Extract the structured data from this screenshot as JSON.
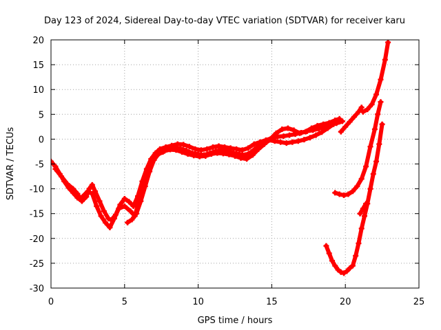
{
  "chart_data": {
    "type": "scatter",
    "title": "Day 123 of 2024, Sidereal Day-to-day VTEC variation (SDTVAR) for receiver karu",
    "xlabel": "GPS time / hours",
    "ylabel": "SDTVAR / TECUs",
    "xlim": [
      0,
      25
    ],
    "ylim": [
      -30,
      20
    ],
    "xticks": [
      "0",
      "5",
      "10",
      "15",
      "20",
      "25"
    ],
    "yticks": [
      "20",
      "15",
      "10",
      "5",
      "0",
      "-5",
      "-10",
      "-15",
      "-20",
      "-25",
      "-30"
    ],
    "grid": true,
    "legend": "none",
    "color": "#ff0000",
    "series": [
      {
        "points": [
          [
            0.0,
            -4.5
          ],
          [
            0.3,
            -5.5
          ],
          [
            0.6,
            -7.0
          ],
          [
            0.9,
            -8.5
          ],
          [
            1.2,
            -9.8
          ],
          [
            1.5,
            -10.8
          ],
          [
            1.8,
            -11.8
          ],
          [
            2.1,
            -12.5
          ],
          [
            2.4,
            -11.6
          ],
          [
            2.6,
            -10.0
          ],
          [
            2.8,
            -9.2
          ],
          [
            3.0,
            -10.5
          ],
          [
            3.3,
            -12.5
          ],
          [
            3.6,
            -14.5
          ],
          [
            3.9,
            -16.0
          ],
          [
            4.1,
            -16.3
          ],
          [
            4.4,
            -15.2
          ],
          [
            4.7,
            -13.2
          ],
          [
            5.0,
            -12.0
          ],
          [
            5.3,
            -12.6
          ],
          [
            5.6,
            -13.5
          ],
          [
            5.9,
            -11.5
          ],
          [
            6.2,
            -8.5
          ],
          [
            6.5,
            -6.0
          ],
          [
            6.8,
            -4.0
          ],
          [
            7.1,
            -2.8
          ],
          [
            7.4,
            -2.0
          ],
          [
            7.8,
            -1.6
          ],
          [
            8.2,
            -1.3
          ],
          [
            8.6,
            -1.0
          ],
          [
            9.0,
            -1.1
          ],
          [
            9.4,
            -1.5
          ],
          [
            9.8,
            -2.0
          ],
          [
            10.2,
            -2.2
          ],
          [
            10.6,
            -2.0
          ],
          [
            11.0,
            -1.6
          ],
          [
            11.4,
            -1.4
          ],
          [
            11.8,
            -1.6
          ],
          [
            12.2,
            -1.8
          ],
          [
            12.6,
            -2.0
          ],
          [
            13.0,
            -2.2
          ],
          [
            13.4,
            -1.8
          ],
          [
            13.8,
            -1.0
          ],
          [
            14.2,
            -0.6
          ],
          [
            14.6,
            -0.2
          ],
          [
            15.0,
            0.2
          ],
          [
            15.4,
            0.5
          ],
          [
            15.8,
            0.6
          ],
          [
            16.2,
            0.8
          ],
          [
            16.6,
            1.0
          ],
          [
            17.0,
            1.3
          ],
          [
            17.4,
            1.6
          ],
          [
            17.8,
            1.8
          ],
          [
            18.2,
            2.1
          ],
          [
            18.6,
            2.5
          ],
          [
            19.0,
            2.9
          ],
          [
            19.4,
            3.2
          ],
          [
            19.8,
            3.6
          ]
        ]
      },
      {
        "points": [
          [
            0.3,
            -6.0
          ],
          [
            0.7,
            -7.5
          ],
          [
            1.1,
            -9.0
          ],
          [
            1.5,
            -10.0
          ],
          [
            1.8,
            -11.0
          ],
          [
            2.0,
            -12.0
          ],
          [
            2.5,
            -10.5
          ],
          [
            2.8,
            -11.0
          ],
          [
            3.1,
            -13.5
          ],
          [
            3.4,
            -15.5
          ],
          [
            3.7,
            -16.8
          ],
          [
            4.0,
            -17.8
          ],
          [
            4.3,
            -16.0
          ],
          [
            4.6,
            -14.0
          ],
          [
            5.0,
            -13.5
          ],
          [
            5.4,
            -14.5
          ],
          [
            5.7,
            -15.5
          ],
          [
            6.0,
            -12.0
          ],
          [
            6.3,
            -9.0
          ],
          [
            6.6,
            -6.5
          ],
          [
            6.9,
            -4.5
          ],
          [
            7.2,
            -3.2
          ],
          [
            7.6,
            -2.6
          ],
          [
            8.0,
            -2.0
          ],
          [
            8.4,
            -1.8
          ],
          [
            8.8,
            -1.9
          ],
          [
            9.2,
            -2.3
          ],
          [
            9.6,
            -2.8
          ],
          [
            10.0,
            -3.0
          ],
          [
            10.4,
            -3.2
          ],
          [
            10.8,
            -2.8
          ],
          [
            11.2,
            -2.4
          ],
          [
            11.6,
            -2.2
          ],
          [
            12.0,
            -2.4
          ],
          [
            12.4,
            -2.8
          ],
          [
            12.8,
            -3.0
          ],
          [
            13.2,
            -3.2
          ],
          [
            13.6,
            -2.6
          ],
          [
            14.0,
            -1.6
          ],
          [
            14.4,
            -0.8
          ],
          [
            14.8,
            -0.2
          ],
          [
            15.2,
            -0.4
          ],
          [
            15.6,
            -0.6
          ],
          [
            16.0,
            -0.8
          ],
          [
            16.4,
            -0.6
          ],
          [
            16.8,
            -0.4
          ],
          [
            17.2,
            -0.1
          ],
          [
            17.6,
            0.3
          ],
          [
            18.0,
            0.8
          ],
          [
            18.4,
            1.4
          ],
          [
            18.8,
            2.2
          ],
          [
            19.2,
            3.0
          ],
          [
            19.6,
            3.5
          ]
        ]
      },
      {
        "points": [
          [
            5.2,
            -16.8
          ],
          [
            5.5,
            -16.2
          ],
          [
            5.8,
            -15.0
          ],
          [
            6.1,
            -12.5
          ],
          [
            6.4,
            -9.5
          ],
          [
            6.7,
            -6.5
          ],
          [
            7.0,
            -4.2
          ],
          [
            7.3,
            -3.0
          ],
          [
            7.7,
            -2.4
          ],
          [
            8.1,
            -2.1
          ],
          [
            8.5,
            -2.2
          ],
          [
            8.9,
            -2.6
          ],
          [
            9.3,
            -3.0
          ],
          [
            9.7,
            -3.3
          ],
          [
            10.1,
            -3.5
          ],
          [
            10.5,
            -3.4
          ],
          [
            10.9,
            -3.0
          ],
          [
            11.3,
            -2.8
          ],
          [
            11.7,
            -2.9
          ],
          [
            12.1,
            -3.1
          ],
          [
            12.5,
            -3.4
          ],
          [
            12.9,
            -3.8
          ],
          [
            13.3,
            -4.0
          ],
          [
            13.7,
            -3.2
          ],
          [
            14.1,
            -2.0
          ],
          [
            14.5,
            -1.0
          ],
          [
            14.9,
            0.0
          ],
          [
            15.3,
            1.2
          ],
          [
            15.7,
            2.0
          ],
          [
            16.1,
            2.2
          ],
          [
            16.5,
            1.8
          ],
          [
            16.9,
            1.2
          ],
          [
            17.3,
            1.5
          ],
          [
            17.7,
            2.2
          ],
          [
            18.1,
            2.7
          ],
          [
            18.5,
            3.0
          ],
          [
            18.9,
            3.3
          ],
          [
            19.3,
            3.8
          ],
          [
            19.6,
            4.1
          ]
        ]
      },
      {
        "points": [
          [
            19.7,
            1.5
          ],
          [
            20.0,
            2.5
          ],
          [
            20.3,
            3.5
          ],
          [
            20.6,
            4.5
          ],
          [
            20.9,
            5.5
          ],
          [
            21.1,
            6.4
          ]
        ]
      },
      {
        "points": [
          [
            21.2,
            5.5
          ],
          [
            21.5,
            6.0
          ],
          [
            21.8,
            7.0
          ],
          [
            22.1,
            9.0
          ],
          [
            22.4,
            12.0
          ],
          [
            22.7,
            16.0
          ],
          [
            22.9,
            19.5
          ]
        ]
      },
      {
        "points": [
          [
            19.3,
            -10.8
          ],
          [
            19.6,
            -11.1
          ],
          [
            19.9,
            -11.3
          ],
          [
            20.2,
            -11.1
          ],
          [
            20.5,
            -10.5
          ],
          [
            20.8,
            -9.5
          ],
          [
            21.1,
            -8.0
          ],
          [
            21.4,
            -5.5
          ],
          [
            21.7,
            -1.5
          ],
          [
            22.0,
            2.0
          ],
          [
            22.2,
            5.0
          ],
          [
            22.4,
            7.5
          ]
        ]
      },
      {
        "points": [
          [
            18.7,
            -21.5
          ],
          [
            18.9,
            -23.0
          ],
          [
            19.1,
            -24.5
          ],
          [
            19.3,
            -25.5
          ],
          [
            19.5,
            -26.3
          ],
          [
            19.7,
            -26.8
          ],
          [
            19.9,
            -27.0
          ],
          [
            20.1,
            -26.6
          ],
          [
            20.3,
            -26.0
          ],
          [
            20.5,
            -25.5
          ],
          [
            20.7,
            -23.5
          ],
          [
            20.9,
            -21.0
          ],
          [
            21.1,
            -18.0
          ],
          [
            21.3,
            -15.5
          ],
          [
            21.5,
            -13.0
          ],
          [
            21.7,
            -10.0
          ],
          [
            21.9,
            -7.0
          ],
          [
            22.1,
            -4.5
          ],
          [
            22.3,
            -1.0
          ],
          [
            22.5,
            3.0
          ]
        ]
      },
      {
        "points": [
          [
            21.0,
            -15.0
          ],
          [
            21.2,
            -14.0
          ],
          [
            21.4,
            -13.0
          ]
        ]
      }
    ]
  }
}
